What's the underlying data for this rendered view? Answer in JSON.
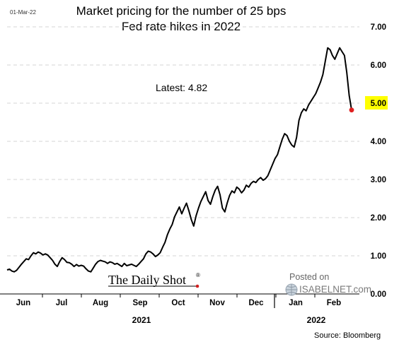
{
  "header": {
    "date_stamp": "01-Mar-22"
  },
  "chart_data": {
    "type": "line",
    "title_lines": [
      "Market pricing for the number of 25 bps",
      "Fed rate hikes in 2022"
    ],
    "annotation": "Latest:  4.82",
    "y_ticks": [
      "0.00",
      "1.00",
      "2.00",
      "3.00",
      "4.00",
      "5.00",
      "6.00",
      "7.00"
    ],
    "ylim": [
      0,
      7
    ],
    "highlight_tick": "5.00",
    "highlight_color": "#ffff00",
    "line_color": "#000000",
    "latest_marker_color": "#e02020",
    "months": [
      "Jun",
      "Jul",
      "Aug",
      "Sep",
      "Oct",
      "Nov",
      "Dec",
      "Jan",
      "Feb"
    ],
    "years": [
      "2021",
      "2022"
    ],
    "series": [
      {
        "values": [
          0.63,
          0.65,
          0.6,
          0.58,
          0.62,
          0.7,
          0.78,
          0.85,
          0.92,
          0.9,
          1.0,
          1.08,
          1.05,
          1.1,
          1.07,
          1.02,
          1.05,
          1.02,
          0.95,
          0.88,
          0.78,
          0.72,
          0.85,
          0.95,
          0.9,
          0.83,
          0.82,
          0.78,
          0.72,
          0.77,
          0.73,
          0.75,
          0.73,
          0.66,
          0.6,
          0.58,
          0.68,
          0.78,
          0.85,
          0.88,
          0.86,
          0.84,
          0.8,
          0.84,
          0.82,
          0.78,
          0.8,
          0.76,
          0.72,
          0.8,
          0.74,
          0.76,
          0.78,
          0.75,
          0.72,
          0.78,
          0.85,
          0.92,
          1.05,
          1.12,
          1.1,
          1.05,
          0.98,
          1.02,
          1.08,
          1.22,
          1.35,
          1.55,
          1.7,
          1.82,
          2.02,
          2.15,
          2.28,
          2.1,
          2.25,
          2.38,
          2.18,
          1.95,
          1.78,
          2.05,
          2.25,
          2.42,
          2.55,
          2.68,
          2.45,
          2.35,
          2.55,
          2.72,
          2.82,
          2.6,
          2.25,
          2.15,
          2.38,
          2.58,
          2.7,
          2.65,
          2.8,
          2.75,
          2.65,
          2.72,
          2.85,
          2.8,
          2.9,
          2.95,
          2.92,
          3.0,
          3.05,
          2.98,
          3.02,
          3.1,
          3.25,
          3.4,
          3.55,
          3.65,
          3.85,
          4.05,
          4.2,
          4.15,
          4.0,
          3.9,
          3.85,
          4.1,
          4.55,
          4.75,
          4.85,
          4.8,
          4.95,
          5.05,
          5.15,
          5.25,
          5.4,
          5.55,
          5.75,
          6.1,
          6.45,
          6.4,
          6.25,
          6.15,
          6.3,
          6.45,
          6.35,
          6.25,
          5.8,
          5.2,
          4.82
        ]
      }
    ],
    "latest_value": 4.82,
    "grid": "dashed horizontal",
    "legend": "none"
  },
  "watermark": {
    "brand": "The Daily Shot",
    "brand_mark": "®",
    "posted_on": "Posted on",
    "site": "ISABELNET.com"
  },
  "footer": {
    "source": "Source: Bloomberg"
  }
}
